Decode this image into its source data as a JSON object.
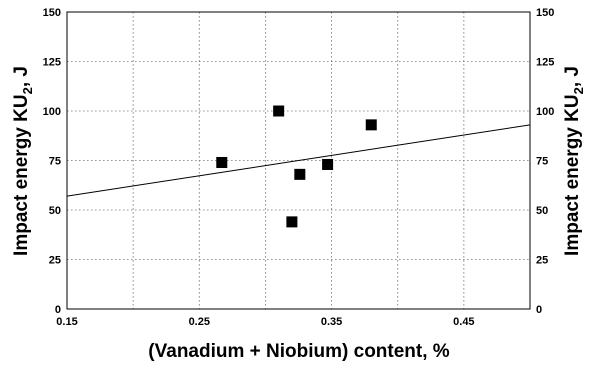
{
  "chart_data": {
    "type": "scatter",
    "title": "",
    "xlabel": "(Vanadium + Niobium) content, %",
    "ylabel_left": {
      "main": "Impact energy KU",
      "sub": "2",
      "tail": ", J"
    },
    "ylabel_right": {
      "main": "Impact energy KU",
      "sub": "2",
      "tail": ", J"
    },
    "xlim": [
      0.15,
      0.5
    ],
    "ylim": [
      0,
      150
    ],
    "grid": true,
    "x_ticks": [
      0.15,
      0.25,
      0.35,
      0.45
    ],
    "x_tick_labels": [
      "0.15",
      "0.25",
      "0.35",
      "0.45"
    ],
    "x_grid": [
      0.15,
      0.2,
      0.25,
      0.3,
      0.35,
      0.4,
      0.45,
      0.5
    ],
    "y_ticks": [
      0,
      25,
      50,
      75,
      100,
      125,
      150
    ],
    "y_tick_labels": [
      "0",
      "25",
      "50",
      "75",
      "100",
      "125",
      "150"
    ],
    "series": [
      {
        "marker": "square",
        "x": [
          0.267,
          0.31,
          0.32,
          0.326,
          0.347,
          0.38
        ],
        "y": [
          74,
          100,
          44,
          68,
          73,
          93
        ]
      }
    ],
    "trendline": {
      "x": [
        0.15,
        0.5
      ],
      "y": [
        57,
        93
      ]
    },
    "colors": {
      "marker": "#000000",
      "line": "#000000",
      "grid": "#777777"
    }
  }
}
